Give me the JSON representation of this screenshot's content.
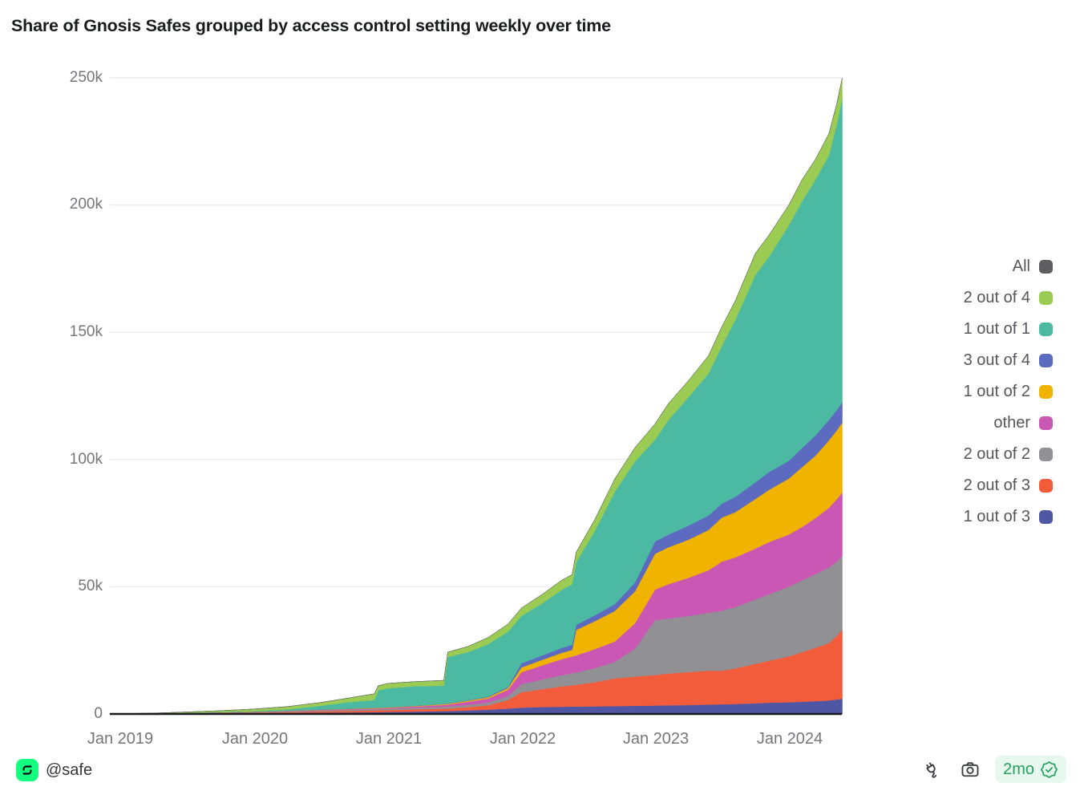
{
  "title": "Share of Gnosis Safes grouped by access control setting weekly over time",
  "footer": {
    "handle": "@safe",
    "avatar_color": "#12ff80",
    "badge_age": "2mo",
    "badge_text_color": "#23a05b",
    "icons": [
      "plug-icon",
      "camera-icon",
      "verified-seal-icon"
    ]
  },
  "chart_data": {
    "type": "area",
    "stacked": true,
    "title": "Share of Gnosis Safes grouped by access control setting weekly over time",
    "xlabel": "",
    "ylabel": "",
    "unit": "safes",
    "value_scale": "thousands",
    "ylim": [
      0,
      250
    ],
    "grid": "horizontal",
    "legend_position": "right",
    "yticks": [
      "250k",
      "200k",
      "150k",
      "100k",
      "50k",
      "0"
    ],
    "ytick_values": [
      250,
      200,
      150,
      100,
      50,
      0
    ],
    "xticks": [
      "Jan 2019",
      "Jan 2020",
      "Jan 2021",
      "Jan 2022",
      "Jan 2023",
      "Jan 2024"
    ],
    "xtick_years": [
      2019,
      2020,
      2021,
      2022,
      2023,
      2024
    ],
    "x_years": [
      2018.92,
      2019.25,
      2019.5,
      2019.75,
      2020.0,
      2020.25,
      2020.5,
      2020.7,
      2020.9,
      2020.93,
      2021.0,
      2021.2,
      2021.42,
      2021.45,
      2021.6,
      2021.75,
      2021.9,
      2022.0,
      2022.15,
      2022.3,
      2022.38,
      2022.41,
      2022.55,
      2022.7,
      2022.85,
      2023.0,
      2023.1,
      2023.25,
      2023.4,
      2023.5,
      2023.6,
      2023.75,
      2023.85,
      2024.0,
      2024.1,
      2024.2,
      2024.3,
      2024.36,
      2024.4
    ],
    "series": [
      {
        "name": "All",
        "color": "#5e5e62",
        "values": [
          0,
          0,
          0,
          0,
          0,
          0,
          0,
          0,
          0,
          0,
          0,
          0,
          0,
          0,
          0,
          0,
          0,
          0,
          0,
          0,
          0,
          0,
          0,
          0,
          0,
          0,
          0,
          0,
          0,
          0,
          0,
          0,
          0,
          0,
          0,
          0,
          0,
          0,
          0
        ]
      },
      {
        "name": "2 out of 4",
        "color": "#9bcb52",
        "values": [
          0.05,
          0.15,
          0.3,
          0.5,
          0.8,
          1.1,
          1.3,
          1.6,
          2.4,
          1.8,
          1.9,
          1.8,
          2.1,
          1.9,
          2.2,
          2.6,
          3.0,
          3.1,
          3.5,
          3.8,
          3.8,
          4.0,
          4.5,
          5.0,
          5.5,
          6.2,
          6.5,
          6.5,
          7.0,
          7.5,
          7.5,
          8.5,
          8.5,
          8.0,
          8.5,
          8.0,
          8.5,
          8.0,
          8.0
        ]
      },
      {
        "name": "1 out of 1",
        "color": "#4cb9a2",
        "values": [
          0,
          0.03,
          0.1,
          0.12,
          0.2,
          0.52,
          1.48,
          2.52,
          3.07,
          6.82,
          7.47,
          7.7,
          7.05,
          18.25,
          18.9,
          20.55,
          21.7,
          18.6,
          20.4,
          22.8,
          23.8,
          24.5,
          33.2,
          44.3,
          47.5,
          40.0,
          45.0,
          50.5,
          55.8,
          62.0,
          69.5,
          81.5,
          84.5,
          92.5,
          97.0,
          100.5,
          104.0,
          112.5,
          119.5
        ]
      },
      {
        "name": "3 out of 4",
        "color": "#5c6bc0",
        "values": [
          0,
          0.01,
          0.02,
          0.03,
          0.05,
          0.06,
          0.07,
          0.08,
          0.08,
          0.08,
          0.08,
          0.1,
          0.15,
          0.15,
          0.2,
          0.25,
          0.4,
          1.6,
          1.7,
          1.9,
          2.0,
          2.0,
          2.3,
          2.7,
          3.5,
          4.8,
          5.0,
          5.5,
          5.7,
          5.5,
          6.0,
          6.5,
          7.0,
          7.0,
          7.5,
          8.0,
          8.0,
          8.0,
          8.0
        ]
      },
      {
        "name": "1 out of 2",
        "color": "#f0b300",
        "values": [
          0,
          0.02,
          0.05,
          0.07,
          0.1,
          0.12,
          0.15,
          0.15,
          0.2,
          0.2,
          0.2,
          0.2,
          0.3,
          0.3,
          0.4,
          0.5,
          0.7,
          1.9,
          2.2,
          2.5,
          2.6,
          10.0,
          11.0,
          12.0,
          12.5,
          14.1,
          14.5,
          15.0,
          15.8,
          17.3,
          17.8,
          19.5,
          20.5,
          22.0,
          23.5,
          24.5,
          26.5,
          27.0,
          27.5
        ]
      },
      {
        "name": "other",
        "color": "#cb57b5",
        "values": [
          0,
          0.02,
          0.05,
          0.08,
          0.1,
          0.15,
          0.2,
          0.25,
          0.3,
          0.3,
          0.3,
          0.5,
          0.75,
          0.8,
          1.2,
          1.6,
          2.5,
          4.7,
          5.5,
          6.3,
          6.6,
          6.7,
          7.5,
          8.0,
          10.0,
          12.0,
          13.5,
          15.0,
          16.7,
          19.4,
          19.5,
          20.0,
          20.5,
          20.5,
          21.0,
          22.0,
          23.5,
          24.5,
          25.0
        ]
      },
      {
        "name": "2 out of 2",
        "color": "#919195",
        "values": [
          0,
          0.02,
          0.08,
          0.15,
          0.2,
          0.25,
          0.3,
          0.4,
          0.45,
          0.45,
          0.5,
          0.6,
          0.75,
          0.75,
          0.9,
          1.1,
          1.5,
          3.2,
          3.8,
          4.4,
          4.7,
          4.8,
          5.5,
          6.5,
          11.0,
          21.6,
          21.6,
          22.0,
          22.8,
          23.5,
          24.1,
          25.3,
          26.1,
          27.4,
          28.2,
          29.0,
          29.7,
          29.3,
          29.0
        ]
      },
      {
        "name": "2 out of 3",
        "color": "#f25c3b",
        "values": [
          0,
          0.05,
          0.1,
          0.15,
          0.2,
          0.3,
          0.5,
          0.6,
          0.7,
          0.73,
          0.75,
          0.85,
          1.0,
          1.03,
          1.3,
          1.7,
          3.4,
          6.0,
          7.0,
          7.95,
          8.4,
          8.58,
          9.5,
          10.9,
          11.5,
          12.0,
          12.5,
          13.0,
          13.3,
          13.2,
          14.0,
          15.5,
          16.5,
          18.0,
          19.5,
          21.0,
          22.5,
          25.0,
          27.0
        ]
      },
      {
        "name": "1 out of 3",
        "color": "#4f57a5",
        "values": [
          0,
          0.05,
          0.1,
          0.2,
          0.3,
          0.4,
          0.5,
          0.6,
          0.7,
          0.72,
          0.8,
          0.95,
          1.1,
          1.12,
          1.4,
          1.7,
          2.1,
          2.5,
          2.7,
          2.85,
          2.9,
          2.92,
          3.0,
          3.1,
          3.2,
          3.3,
          3.4,
          3.5,
          3.7,
          3.8,
          3.9,
          4.2,
          4.4,
          4.6,
          4.8,
          5.0,
          5.3,
          5.7,
          6.0
        ]
      }
    ]
  }
}
